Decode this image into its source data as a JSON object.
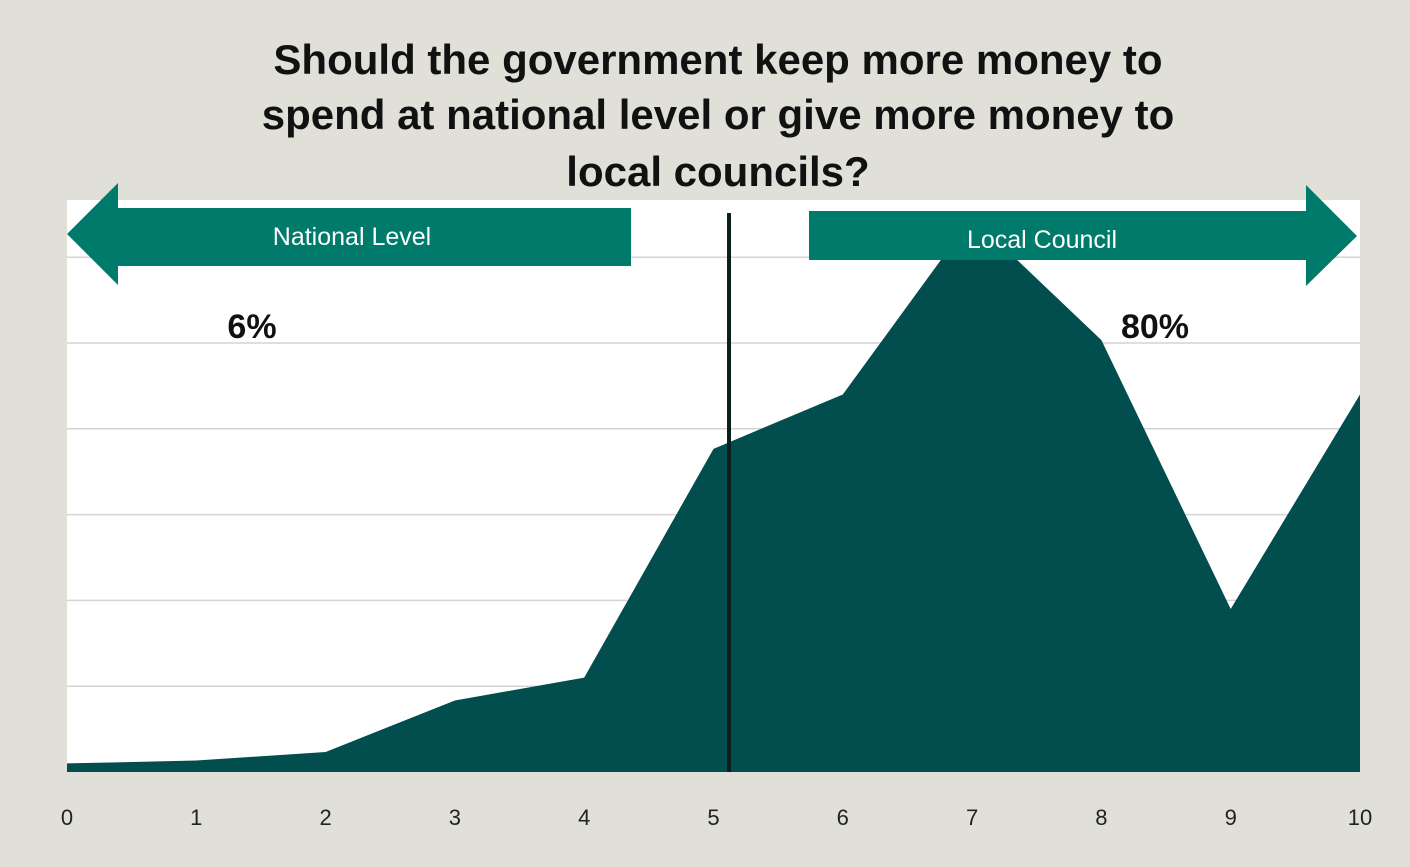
{
  "chart_data": {
    "type": "area",
    "title_lines": [
      "Should the government keep more money to",
      "spend at national level or give more money to",
      "local councils?"
    ],
    "xlabel": "",
    "ylabel": "",
    "x": [
      0,
      1,
      2,
      3,
      4,
      5,
      6,
      7,
      8,
      9,
      10
    ],
    "values": [
      0.3,
      0.4,
      0.7,
      2.5,
      3.3,
      11.3,
      13.2,
      19.4,
      15.1,
      5.7,
      13.2
    ],
    "xlim": [
      0,
      10
    ],
    "ylim": [
      0,
      20
    ],
    "divider_x": 5.12,
    "grid": true,
    "fill_color": "#024d4d",
    "arrow_color": "#007a6a",
    "annotations": {
      "left_arrow_label": "National Level",
      "right_arrow_label": "Local Council",
      "left_percent": "6%",
      "right_percent": "80%"
    }
  }
}
